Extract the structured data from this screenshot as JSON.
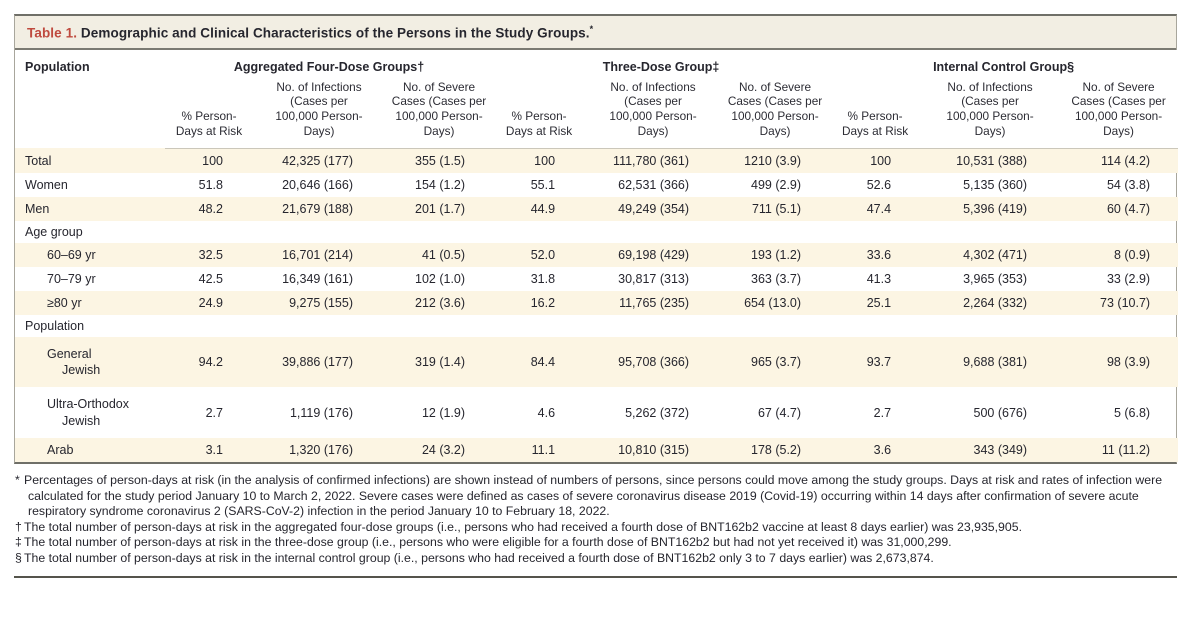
{
  "colors": {
    "accent_red": "#bf4a3e",
    "stripe_cream": "#fcf5e3",
    "title_bar_bg": "#f2eee3",
    "text": "#26262e",
    "frame_border": "#6f6f68"
  },
  "table": {
    "title": {
      "label": "Table 1.",
      "text": " Demographic and Clinical Characteristics of the Persons in the Study Groups.",
      "marker": "*"
    },
    "first_col_header": "Population",
    "groups": [
      {
        "label": "Aggregated Four-Dose Groups†"
      },
      {
        "label": "Three-Dose Group‡"
      },
      {
        "label": "Internal Control Group§"
      }
    ],
    "sub_headers": {
      "pct": "% Person-Days at Risk",
      "infections": "No. of Infections (Cases per 100,000 Person-Days)",
      "severe": "No. of Severe Cases (Cases per 100,000 Person-Days)"
    },
    "rows": [
      {
        "type": "data",
        "indent": 0,
        "label": "Total",
        "values": [
          "100",
          "42,325 (177)",
          "355 (1.5)",
          "100",
          "111,780 (361)",
          "1210 (3.9)",
          "100",
          "10,531 (388)",
          "114 (4.2)"
        ]
      },
      {
        "type": "data",
        "indent": 0,
        "label": "Women",
        "values": [
          "51.8",
          "20,646 (166)",
          "154 (1.2)",
          "55.1",
          "62,531 (366)",
          "499 (2.9)",
          "52.6",
          "5,135 (360)",
          "54 (3.8)"
        ]
      },
      {
        "type": "data",
        "indent": 0,
        "label": "Men",
        "values": [
          "48.2",
          "21,679 (188)",
          "201 (1.7)",
          "44.9",
          "49,249 (354)",
          "711 (5.1)",
          "47.4",
          "5,396 (419)",
          "60 (4.7)"
        ]
      },
      {
        "type": "section",
        "label": "Age group"
      },
      {
        "type": "data",
        "indent": 1,
        "label": "60–69 yr",
        "values": [
          "32.5",
          "16,701 (214)",
          "41 (0.5)",
          "52.0",
          "69,198 (429)",
          "193 (1.2)",
          "33.6",
          "4,302 (471)",
          "8 (0.9)"
        ]
      },
      {
        "type": "data",
        "indent": 1,
        "label": "70–79 yr",
        "values": [
          "42.5",
          "16,349 (161)",
          "102 (1.0)",
          "31.8",
          "30,817 (313)",
          "363 (3.7)",
          "41.3",
          "3,965 (353)",
          "33 (2.9)"
        ]
      },
      {
        "type": "data",
        "indent": 1,
        "label": "≥80 yr",
        "values": [
          "24.9",
          "9,275 (155)",
          "212 (3.6)",
          "16.2",
          "11,765 (235)",
          "654 (13.0)",
          "25.1",
          "2,264 (332)",
          "73 (10.7)"
        ]
      },
      {
        "type": "section",
        "label": "Population"
      },
      {
        "type": "data",
        "indent": 1,
        "wrap": true,
        "label": "General Jewish",
        "label_lines": [
          "General",
          "Jewish"
        ],
        "values": [
          "94.2",
          "39,886 (177)",
          "319 (1.4)",
          "84.4",
          "95,708 (366)",
          "965 (3.7)",
          "93.7",
          "9,688 (381)",
          "98 (3.9)"
        ]
      },
      {
        "type": "data",
        "indent": 1,
        "wrap": true,
        "label": "Ultra-Orthodox Jewish",
        "label_lines": [
          "Ultra-Orthodox",
          "Jewish"
        ],
        "values": [
          "2.7",
          "1,119 (176)",
          "12 (1.9)",
          "4.6",
          "5,262 (372)",
          "67 (4.7)",
          "2.7",
          "500 (676)",
          "5 (6.8)"
        ]
      },
      {
        "type": "data",
        "indent": 1,
        "label": "Arab",
        "values": [
          "3.1",
          "1,320 (176)",
          "24 (3.2)",
          "11.1",
          "10,810 (315)",
          "178 (5.2)",
          "3.6",
          "343 (349)",
          "11 (11.2)"
        ]
      }
    ]
  },
  "footnotes": [
    {
      "marker": "*",
      "text": "Percentages of person-days at risk (in the analysis of confirmed infections) are shown instead of numbers of persons, since persons could move among the study groups. Days at risk and rates of infection were calculated for the study period January 10 to March 2, 2022. Severe cases were defined as cases of severe coronavirus disease 2019 (Covid-19) occurring within 14 days after confirmation of severe acute respiratory syndrome coronavirus 2 (SARS-CoV-2) infection in the period January 10 to February 18, 2022."
    },
    {
      "marker": "†",
      "text": "The total number of person-days at risk in the aggregated four-dose groups (i.e., persons who had received a fourth dose of BNT162b2 vaccine at least 8 days earlier) was 23,935,905."
    },
    {
      "marker": "‡",
      "text": "The total number of person-days at risk in the three-dose group (i.e., persons who were eligible for a fourth dose of BNT162b2 but had not yet received it) was 31,000,299."
    },
    {
      "marker": "§",
      "text": "The total number of person-days at risk in the internal control group (i.e., persons who had received a fourth dose of BNT162b2 only 3 to 7 days earlier) was 2,673,874."
    }
  ]
}
